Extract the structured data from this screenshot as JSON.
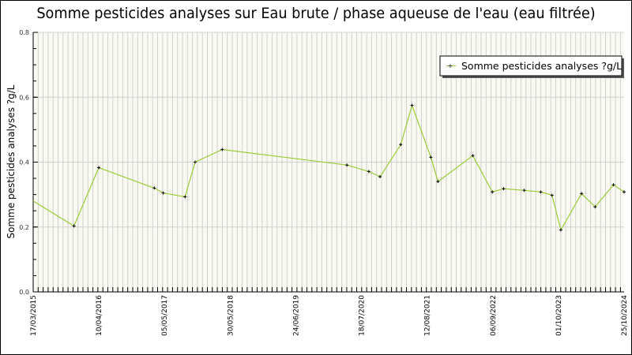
{
  "chart_data": {
    "type": "line",
    "title": "Somme pesticides analyses sur Eau brute / phase aqueuse de l'eau (eau filtrée)",
    "xlabel": "",
    "ylabel": "Somme pesticides analyses ?g/L",
    "ylim": [
      0,
      0.8
    ],
    "yticks": [
      "0.0",
      "0.2",
      "0.4",
      "0.6",
      "0.8"
    ],
    "xtick_labels": [
      "17/03/2015",
      "10/04/2016",
      "05/05/2017",
      "30/05/2018",
      "24/06/2019",
      "18/07/2020",
      "12/08/2021",
      "06/09/2022",
      "01/10/2023",
      "25/10/2024"
    ],
    "grid": true,
    "legend_position": "upper right",
    "series": [
      {
        "name": "Somme pesticides analyses ?g/L",
        "color": "#99cc33",
        "marker_color": "#000000",
        "points": [
          {
            "x": 0.0,
            "y": 0.28,
            "marker": false
          },
          {
            "x": 0.069,
            "y": 0.203
          },
          {
            "x": 0.111,
            "y": 0.383
          },
          {
            "x": 0.205,
            "y": 0.32
          },
          {
            "x": 0.22,
            "y": 0.305
          },
          {
            "x": 0.257,
            "y": 0.293
          },
          {
            "x": 0.274,
            "y": 0.4
          },
          {
            "x": 0.32,
            "y": 0.439
          },
          {
            "x": 0.531,
            "y": 0.391
          },
          {
            "x": 0.568,
            "y": 0.371
          },
          {
            "x": 0.587,
            "y": 0.355
          },
          {
            "x": 0.622,
            "y": 0.454
          },
          {
            "x": 0.641,
            "y": 0.575
          },
          {
            "x": 0.673,
            "y": 0.415
          },
          {
            "x": 0.685,
            "y": 0.34
          },
          {
            "x": 0.744,
            "y": 0.42
          },
          {
            "x": 0.777,
            "y": 0.308
          },
          {
            "x": 0.796,
            "y": 0.318
          },
          {
            "x": 0.831,
            "y": 0.313
          },
          {
            "x": 0.859,
            "y": 0.308
          },
          {
            "x": 0.878,
            "y": 0.298
          },
          {
            "x": 0.893,
            "y": 0.191
          },
          {
            "x": 0.928,
            "y": 0.303
          },
          {
            "x": 0.951,
            "y": 0.262
          },
          {
            "x": 0.982,
            "y": 0.33
          },
          {
            "x": 1.0,
            "y": 0.308
          }
        ]
      }
    ]
  },
  "legend": {
    "label": "Somme pesticides analyses ?g/L"
  },
  "colors": {
    "plot_background": "#fafaf2",
    "grid": "#d0d0d0",
    "line": "#99cc33",
    "marker": "#000000"
  }
}
